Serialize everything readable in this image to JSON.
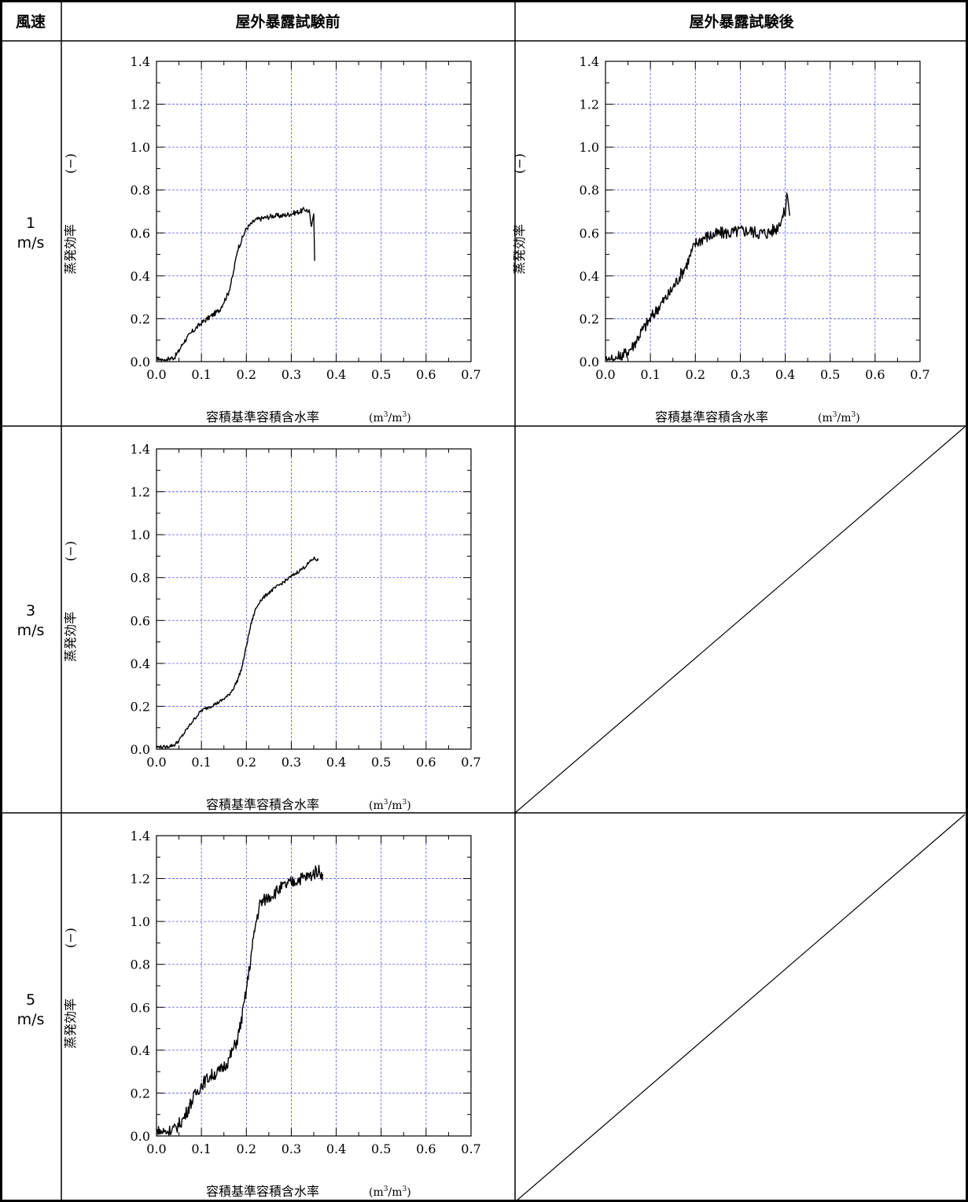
{
  "table": {
    "corner_header": "風速",
    "col_headers": [
      "屋外暴露試験前",
      "屋外暴露試験後"
    ],
    "row_headers": [
      {
        "value": "1",
        "unit": "m/s"
      },
      {
        "value": "3",
        "unit": "m/s"
      },
      {
        "value": "5",
        "unit": "m/s"
      }
    ]
  },
  "axes": {
    "xlabel": "容積基準容積含水率",
    "xunit": {
      "open": "(m",
      "sup1": "3",
      "slash": "/m",
      "sup2": "3",
      "close": ")"
    },
    "ylabel": "蒸発効率",
    "yunit": "(−)"
  },
  "chart_data": [
    {
      "id": "before-1ms",
      "type": "line",
      "row": 0,
      "col": 0,
      "xlabel": "容積基準容積含水率",
      "ylabel": "蒸発効率",
      "xlim": [
        0,
        0.7
      ],
      "ylim": [
        0,
        1.4
      ],
      "xticks": [
        "0.0",
        "0.1",
        "0.2",
        "0.3",
        "0.4",
        "0.5",
        "0.6",
        "0.7"
      ],
      "yticks": [
        "0.0",
        "0.2",
        "0.4",
        "0.6",
        "0.8",
        "1.0",
        "1.2",
        "1.4"
      ],
      "grid": true,
      "noise": 0.012,
      "series": [
        {
          "x": [
            0,
            0.02,
            0.04,
            0.05,
            0.06,
            0.08,
            0.1,
            0.12,
            0.14,
            0.16,
            0.17,
            0.18,
            0.2,
            0.22,
            0.24,
            0.26,
            0.28,
            0.3,
            0.32,
            0.33,
            0.34,
            0.345,
            0.35,
            0.352
          ],
          "y": [
            0.01,
            0.01,
            0.02,
            0.05,
            0.09,
            0.14,
            0.18,
            0.21,
            0.24,
            0.32,
            0.4,
            0.52,
            0.62,
            0.66,
            0.67,
            0.68,
            0.68,
            0.69,
            0.7,
            0.71,
            0.7,
            0.62,
            0.7,
            0.47
          ]
        }
      ]
    },
    {
      "id": "after-1ms",
      "type": "line",
      "row": 0,
      "col": 1,
      "xlabel": "容積基準容積含水率",
      "ylabel": "蒸発効率",
      "xlim": [
        0,
        0.7
      ],
      "ylim": [
        0,
        1.4
      ],
      "xticks": [
        "0.0",
        "0.1",
        "0.2",
        "0.3",
        "0.4",
        "0.5",
        "0.6",
        "0.7"
      ],
      "yticks": [
        "0.0",
        "0.2",
        "0.4",
        "0.6",
        "0.8",
        "1.0",
        "1.2",
        "1.4"
      ],
      "grid": true,
      "noise": 0.03,
      "series": [
        {
          "x": [
            0,
            0.02,
            0.04,
            0.06,
            0.08,
            0.1,
            0.12,
            0.14,
            0.16,
            0.18,
            0.2,
            0.22,
            0.24,
            0.26,
            0.28,
            0.3,
            0.32,
            0.34,
            0.36,
            0.38,
            0.4,
            0.405,
            0.41
          ],
          "y": [
            0.01,
            0.01,
            0.03,
            0.07,
            0.14,
            0.2,
            0.26,
            0.31,
            0.38,
            0.45,
            0.55,
            0.58,
            0.59,
            0.6,
            0.6,
            0.61,
            0.61,
            0.6,
            0.6,
            0.62,
            0.7,
            0.8,
            0.68
          ]
        }
      ]
    },
    {
      "id": "before-3ms",
      "type": "line",
      "row": 1,
      "col": 0,
      "xlabel": "容積基準容積含水率",
      "ylabel": "蒸発効率",
      "xlim": [
        0,
        0.7
      ],
      "ylim": [
        0,
        1.4
      ],
      "xticks": [
        "0.0",
        "0.1",
        "0.2",
        "0.3",
        "0.4",
        "0.5",
        "0.6",
        "0.7"
      ],
      "yticks": [
        "0.0",
        "0.2",
        "0.4",
        "0.6",
        "0.8",
        "1.0",
        "1.2",
        "1.4"
      ],
      "grid": true,
      "noise": 0.008,
      "series": [
        {
          "x": [
            0,
            0.02,
            0.04,
            0.05,
            0.06,
            0.08,
            0.1,
            0.12,
            0.14,
            0.16,
            0.17,
            0.18,
            0.19,
            0.2,
            0.21,
            0.22,
            0.23,
            0.25,
            0.27,
            0.29,
            0.31,
            0.33,
            0.35,
            0.36
          ],
          "y": [
            0.01,
            0.01,
            0.02,
            0.04,
            0.07,
            0.13,
            0.18,
            0.2,
            0.22,
            0.25,
            0.28,
            0.32,
            0.38,
            0.48,
            0.58,
            0.65,
            0.69,
            0.73,
            0.76,
            0.79,
            0.82,
            0.85,
            0.89,
            0.88
          ]
        }
      ]
    },
    {
      "id": "before-5ms",
      "type": "line",
      "row": 2,
      "col": 0,
      "xlabel": "容積基準容積含水率",
      "ylabel": "蒸発効率",
      "xlim": [
        0,
        0.7
      ],
      "ylim": [
        0,
        1.4
      ],
      "xticks": [
        "0.0",
        "0.1",
        "0.2",
        "0.3",
        "0.4",
        "0.5",
        "0.6",
        "0.7"
      ],
      "yticks": [
        "0.0",
        "0.2",
        "0.4",
        "0.6",
        "0.8",
        "1.0",
        "1.2",
        "1.4"
      ],
      "grid": true,
      "noise": 0.03,
      "series": [
        {
          "x": [
            0,
            0.02,
            0.04,
            0.06,
            0.08,
            0.1,
            0.12,
            0.14,
            0.16,
            0.18,
            0.19,
            0.2,
            0.21,
            0.22,
            0.23,
            0.24,
            0.26,
            0.28,
            0.3,
            0.32,
            0.34,
            0.36,
            0.37
          ],
          "y": [
            0.02,
            0.02,
            0.03,
            0.08,
            0.17,
            0.24,
            0.28,
            0.3,
            0.35,
            0.45,
            0.55,
            0.68,
            0.83,
            0.98,
            1.08,
            1.1,
            1.13,
            1.16,
            1.18,
            1.2,
            1.21,
            1.24,
            1.22
          ]
        }
      ]
    }
  ]
}
